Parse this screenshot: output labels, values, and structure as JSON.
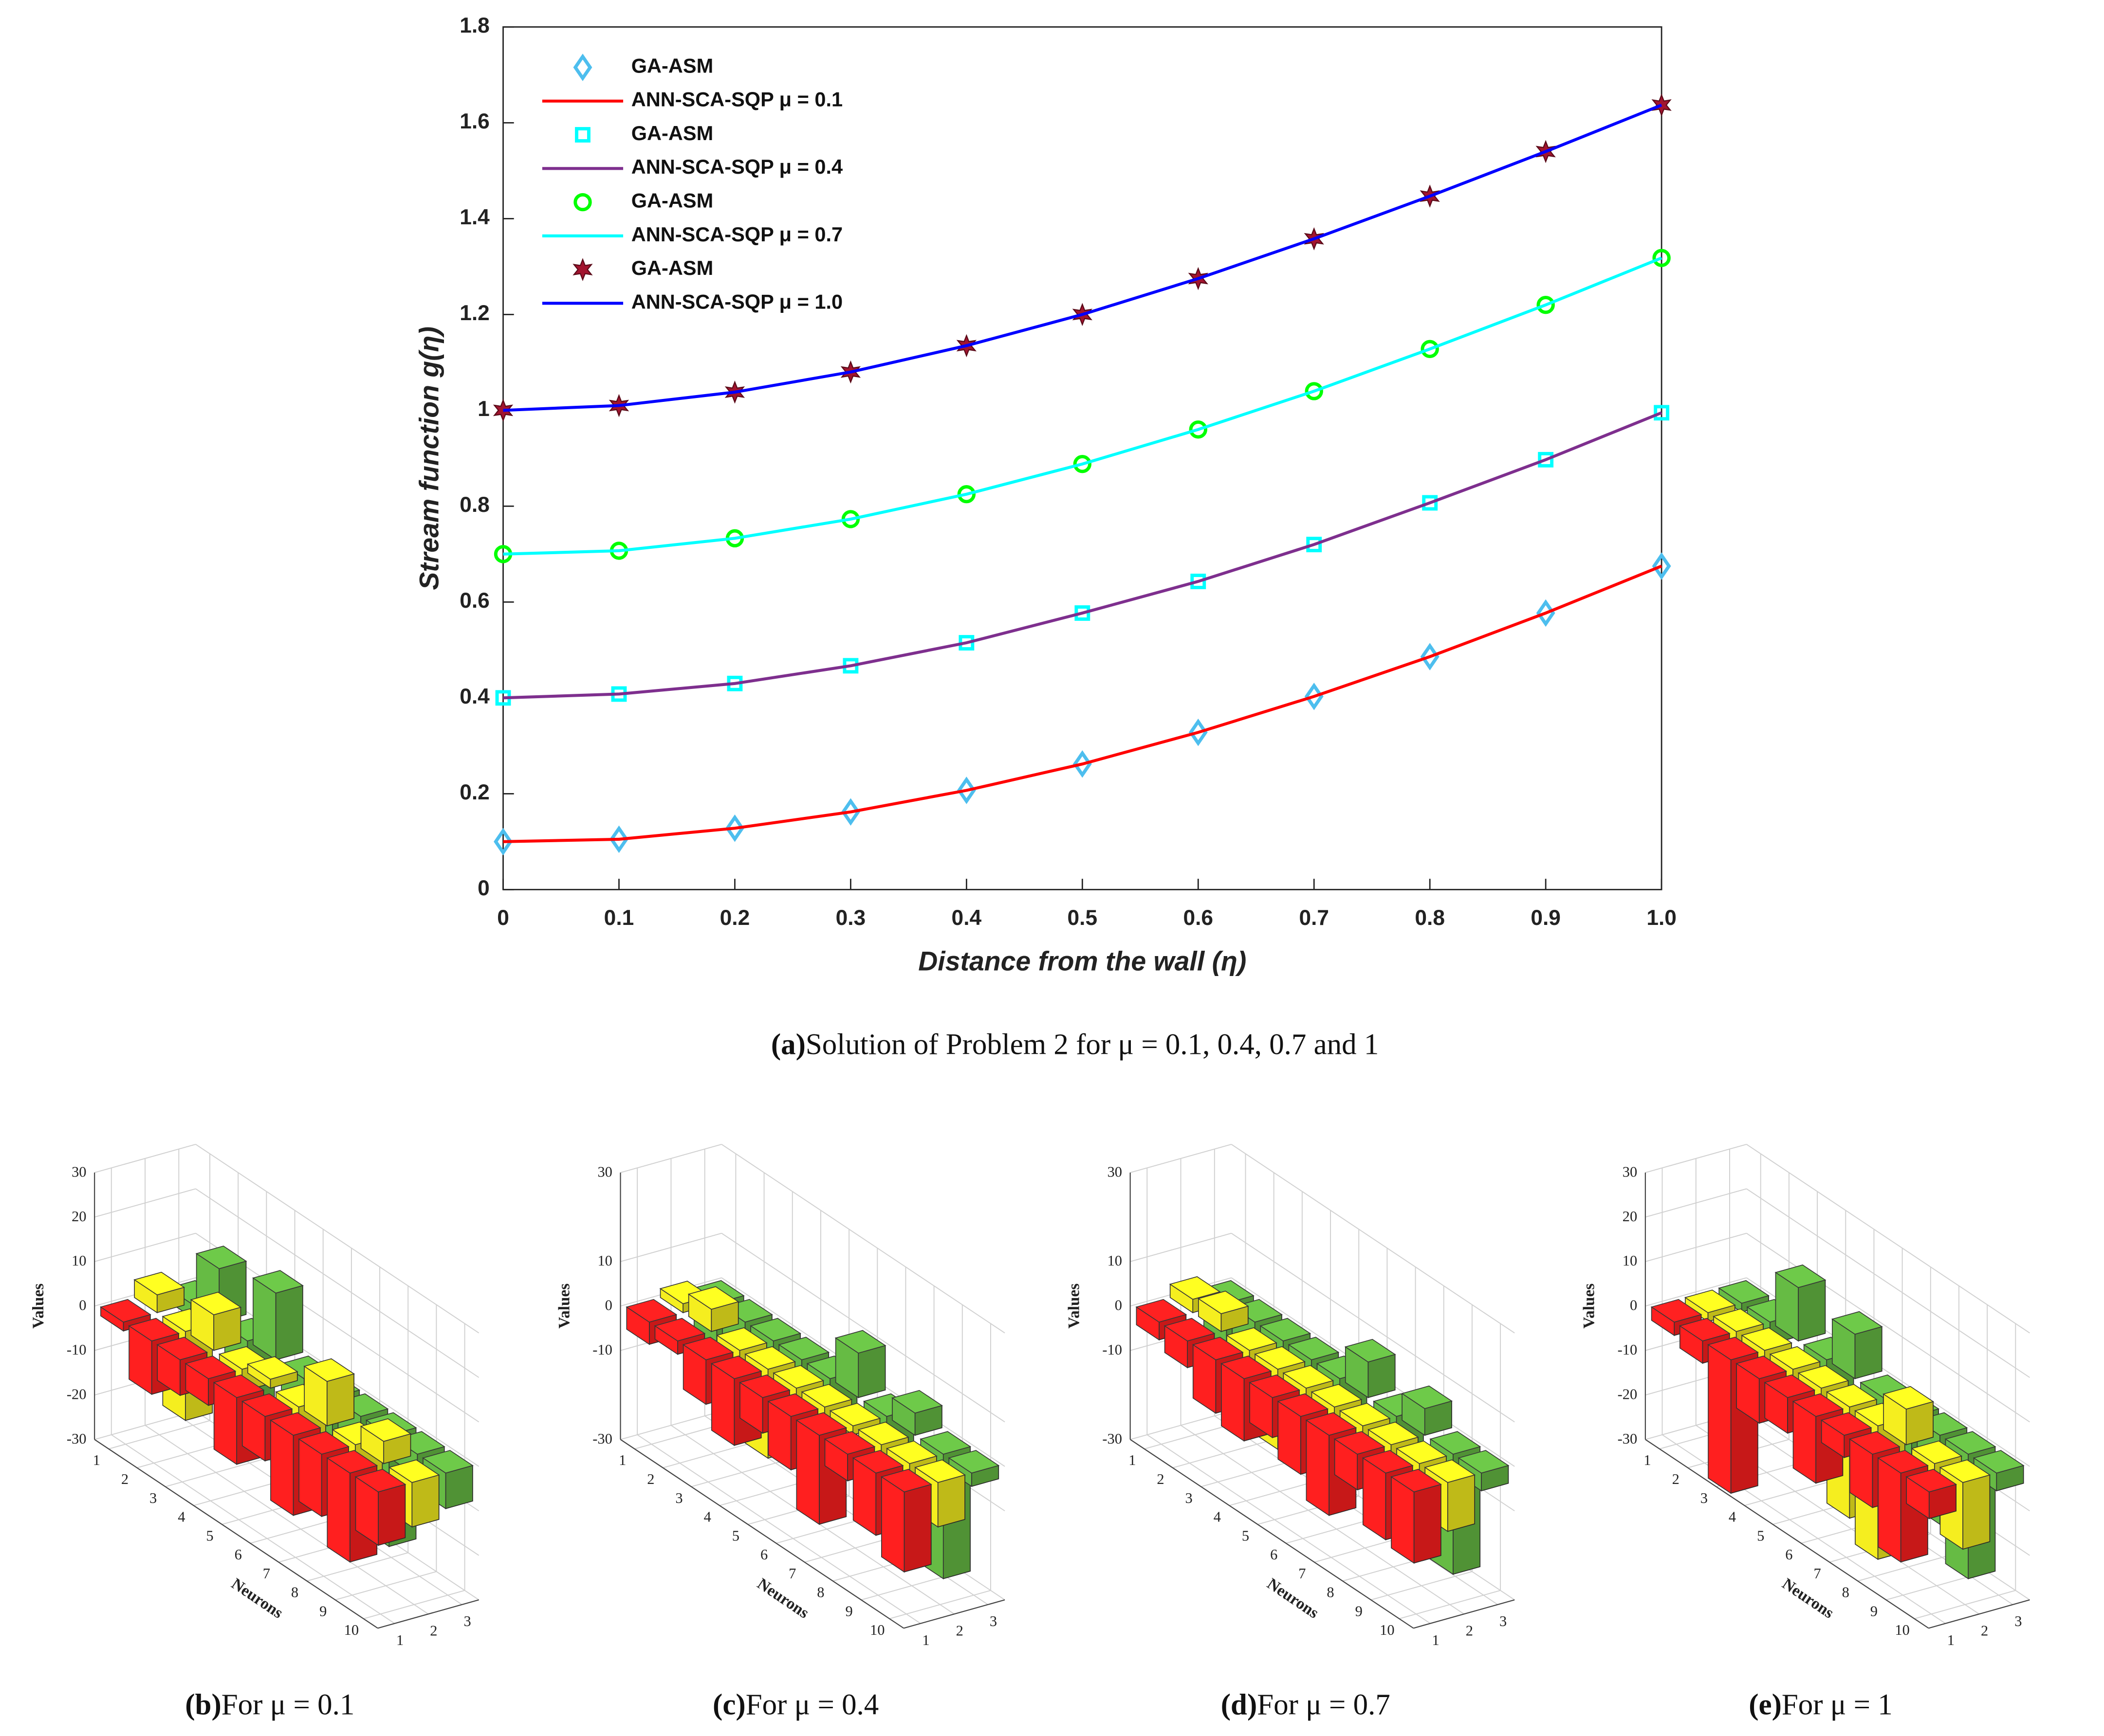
{
  "chart_data": [
    {
      "type": "line",
      "xlabel": "Distance from the wall (η)",
      "ylabel": "Stream function g(η)",
      "caption": {
        "label": "(a)",
        "text": "Solution of Problem 2 for μ = 0.1, 0.4, 0.7 and 1"
      },
      "x": [
        0,
        0.1,
        0.2,
        0.3,
        0.4,
        0.5,
        0.6,
        0.7,
        0.8,
        0.9,
        1
      ],
      "xlim": [
        0,
        1
      ],
      "xticks": [
        0,
        0.1,
        0.2,
        0.3,
        0.4,
        0.5,
        0.6,
        0.7,
        0.8,
        0.9,
        {
          "value": 1,
          "label": "1.0"
        }
      ],
      "ylim": [
        0,
        1.8
      ],
      "yticks": [
        0,
        0.2,
        0.4,
        0.6,
        0.8,
        1,
        1.2,
        1.4,
        1.6,
        1.8
      ],
      "legend": "upper left",
      "series": [
        {
          "name": "GA-ASM",
          "marker": "diamond",
          "color": "#4dbeee",
          "values": [
            0.1,
            0.105,
            0.128,
            0.162,
            0.207,
            0.262,
            0.328,
            0.403,
            0.486,
            0.577,
            0.675
          ]
        },
        {
          "name": "ANN-SCA-SQP μ = 0.1",
          "marker": "line",
          "color": "#ff0000",
          "values": [
            0.1,
            0.105,
            0.128,
            0.162,
            0.207,
            0.262,
            0.328,
            0.403,
            0.486,
            0.577,
            0.675
          ]
        },
        {
          "name": "GA-ASM",
          "marker": "square",
          "color": "#00ffff",
          "values": [
            0.4,
            0.408,
            0.43,
            0.467,
            0.515,
            0.577,
            0.643,
            0.72,
            0.807,
            0.897,
            0.995
          ]
        },
        {
          "name": "ANN-SCA-SQP μ = 0.4",
          "marker": "line",
          "color": "#7e2f8e",
          "values": [
            0.4,
            0.408,
            0.43,
            0.467,
            0.515,
            0.577,
            0.643,
            0.72,
            0.807,
            0.897,
            0.995
          ]
        },
        {
          "name": "GA-ASM",
          "marker": "circle",
          "color": "#00ff00",
          "values": [
            0.7,
            0.707,
            0.733,
            0.773,
            0.825,
            0.888,
            0.96,
            1.04,
            1.128,
            1.22,
            1.318
          ]
        },
        {
          "name": "ANN-SCA-SQP μ = 0.7",
          "marker": "line",
          "color": "#00ffff",
          "values": [
            0.7,
            0.707,
            0.733,
            0.773,
            0.825,
            0.888,
            0.96,
            1.04,
            1.128,
            1.22,
            1.318
          ]
        },
        {
          "name": "GA-ASM",
          "marker": "hexagram",
          "color": "#a2142f",
          "values": [
            1.0,
            1.01,
            1.038,
            1.08,
            1.135,
            1.2,
            1.275,
            1.358,
            1.447,
            1.54,
            1.637
          ]
        },
        {
          "name": "ANN-SCA-SQP μ = 1.0",
          "marker": "line",
          "color": "#0000ff",
          "values": [
            1.0,
            1.01,
            1.038,
            1.08,
            1.135,
            1.2,
            1.275,
            1.358,
            1.447,
            1.54,
            1.637
          ]
        }
      ]
    },
    {
      "type": "bar3d",
      "xlabel": "Neurons",
      "zlabel": "Values",
      "caption": {
        "label": "(b)",
        "text": "For μ = 0.1"
      },
      "xticks": [
        1,
        2,
        3,
        4,
        5,
        6,
        7,
        8,
        9,
        10
      ],
      "yticks": [
        1,
        2,
        3
      ],
      "zlim": [
        -30,
        30
      ],
      "zticks": [
        -30,
        -20,
        -10,
        0,
        10,
        20,
        30
      ],
      "series": [
        {
          "color": "#ff1f1f",
          "values": [
            -2,
            -12,
            -8,
            -6,
            -15,
            -10,
            -18,
            -14,
            -20,
            -12
          ]
        },
        {
          "color": "#f5ee1f",
          "values": [
            4,
            -20,
            8,
            -5,
            2,
            -8,
            10,
            -15,
            5,
            -10
          ]
        },
        {
          "color": "#66bb44",
          "values": [
            -3,
            12,
            -18,
            15,
            -20,
            -10,
            -22,
            -25,
            -5,
            -8
          ]
        }
      ]
    },
    {
      "type": "bar3d",
      "xlabel": "Neurons",
      "zlabel": "Values",
      "caption": {
        "label": "(c)",
        "text": "For μ = 0.4"
      },
      "xticks": [
        1,
        2,
        3,
        4,
        5,
        6,
        7,
        8,
        9,
        10
      ],
      "yticks": [
        1,
        2,
        3
      ],
      "zlim": [
        -30,
        30
      ],
      "zticks": [
        -30,
        -10,
        0,
        10,
        30
      ],
      "series": [
        {
          "color": "#ff1f1f",
          "values": [
            -5,
            -3,
            -10,
            -15,
            -8,
            -12,
            -20,
            -6,
            -14,
            -18
          ]
        },
        {
          "color": "#f5ee1f",
          "values": [
            2,
            5,
            -12,
            -20,
            -4,
            -8,
            -2,
            -15,
            -6,
            -10
          ]
        },
        {
          "color": "#66bb44",
          "values": [
            -15,
            -12,
            -10,
            -8,
            -20,
            10,
            -25,
            5,
            -28,
            -3
          ]
        }
      ]
    },
    {
      "type": "bar3d",
      "xlabel": "Neurons",
      "zlabel": "Values",
      "caption": {
        "label": "(d)",
        "text": "For μ = 0.7"
      },
      "xticks": [
        1,
        2,
        3,
        4,
        5,
        6,
        7,
        8,
        9,
        10
      ],
      "yticks": [
        1,
        2,
        3
      ],
      "zlim": [
        -30,
        30
      ],
      "zticks": [
        -30,
        -10,
        0,
        10,
        30
      ],
      "series": [
        {
          "color": "#ff1f1f",
          "values": [
            -4,
            -6,
            -12,
            -14,
            -9,
            -13,
            -18,
            -8,
            -15,
            -16
          ]
        },
        {
          "color": "#f5ee1f",
          "values": [
            3,
            4,
            -14,
            -18,
            -5,
            -9,
            -3,
            -16,
            -7,
            -11
          ]
        },
        {
          "color": "#66bb44",
          "values": [
            -14,
            -11,
            -9,
            -10,
            -22,
            8,
            -24,
            6,
            -27,
            -4
          ]
        }
      ]
    },
    {
      "type": "bar3d",
      "xlabel": "Neurons",
      "zlabel": "Values",
      "caption": {
        "label": "(e)",
        "text": "For μ = 1"
      },
      "xticks": [
        1,
        2,
        3,
        4,
        5,
        6,
        7,
        8,
        9,
        10
      ],
      "yticks": [
        1,
        2,
        3
      ],
      "zlim": [
        -30,
        30
      ],
      "zticks": [
        -30,
        -20,
        -10,
        0,
        10,
        20,
        30
      ],
      "series": [
        {
          "color": "#ff1f1f",
          "values": [
            -3,
            -5,
            -30,
            -10,
            -8,
            -15,
            -5,
            -12,
            -20,
            -6
          ]
        },
        {
          "color": "#f5ee1f",
          "values": [
            -2,
            -6,
            -4,
            -10,
            -8,
            -25,
            -30,
            8,
            -12,
            -15
          ]
        },
        {
          "color": "#66bb44",
          "values": [
            -2,
            -5,
            12,
            -25,
            10,
            -18,
            -10,
            -20,
            -28,
            -4
          ]
        }
      ]
    }
  ]
}
